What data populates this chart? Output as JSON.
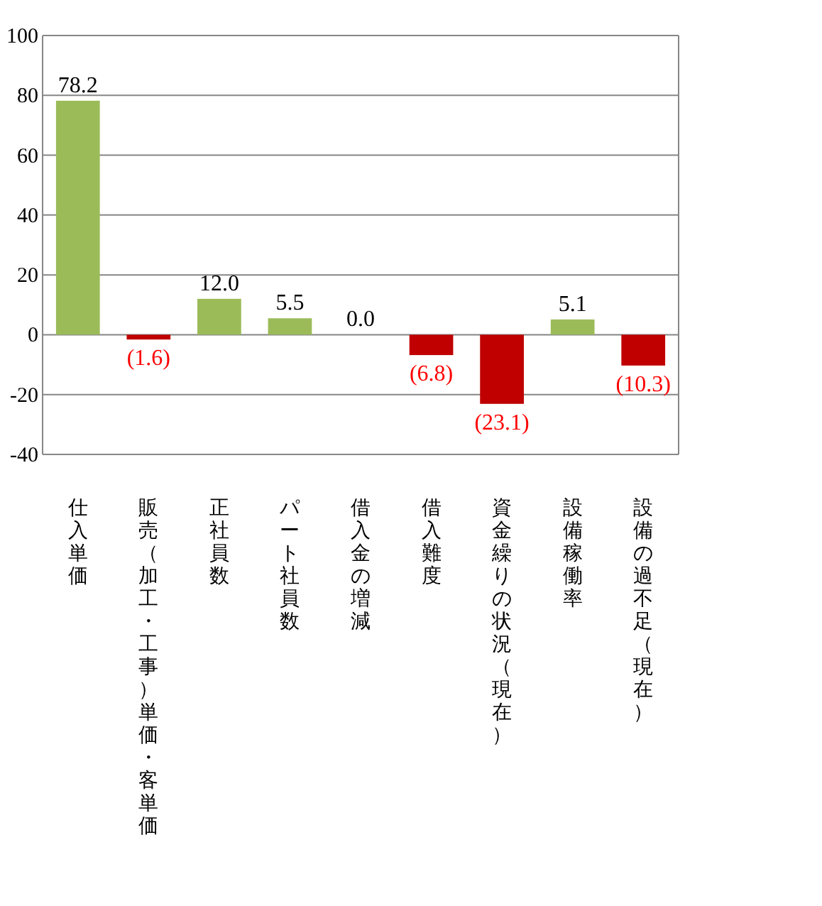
{
  "chart_data": {
    "type": "bar",
    "categories": [
      "仕入単価",
      "販売（加工・工事）単価・客単価",
      "正社員数",
      "パート社員数",
      "借入金の増減",
      "借入難度",
      "資金繰りの状況（現在）",
      "設備稼働率",
      "設備の過不足（現在）"
    ],
    "values": [
      78.2,
      -1.6,
      12.0,
      5.5,
      0.0,
      -6.8,
      -23.1,
      5.1,
      -10.3
    ],
    "colors": [
      "#9bbb59",
      "#c00000",
      "#9bbb59",
      "#9bbb59",
      "#9bbb59",
      "#c00000",
      "#c00000",
      "#9bbb59",
      "#c00000"
    ],
    "value_labels": [
      "78.2",
      "(1.6)",
      "12.0",
      "5.5",
      "0.0",
      "(6.8)",
      "(23.1)",
      "5.1",
      "(10.3)"
    ],
    "ylim": [
      -40,
      100
    ],
    "yticks": [
      -40,
      -20,
      0,
      20,
      40,
      60,
      80,
      100
    ],
    "grid": "y"
  }
}
